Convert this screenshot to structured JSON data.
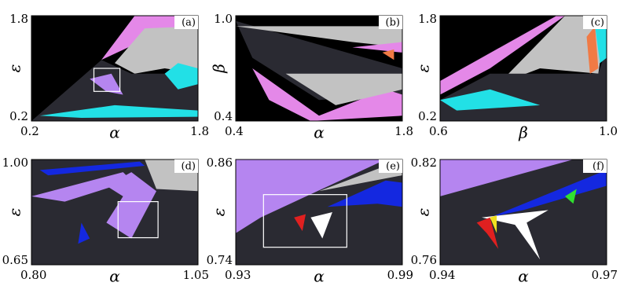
{
  "chart_data": [
    {
      "type": "heatmap",
      "label": "(a)",
      "x_label": "α",
      "y_label": "ε",
      "xlim": [
        0.2,
        1.8
      ],
      "ylim": [
        0.2,
        1.8
      ],
      "xticks": [
        0.2,
        1.8
      ],
      "yticks": [
        0.2,
        1.8
      ]
    },
    {
      "type": "heatmap",
      "label": "(b)",
      "x_label": "α",
      "y_label": "β",
      "xlim": [
        0.4,
        1.8
      ],
      "ylim": [
        0.4,
        1.0
      ],
      "xticks": [
        0.4,
        1.8
      ],
      "yticks": [
        0.4,
        {
          "value": 1.0,
          "label": "1.0"
        }
      ]
    },
    {
      "type": "heatmap",
      "label": "(c)",
      "x_label": "β",
      "y_label": "ε",
      "xlim": [
        0.6,
        1.0
      ],
      "ylim": [
        0.2,
        1.8
      ],
      "xticks": [
        0.6,
        {
          "value": 1.0,
          "label": "1.0"
        }
      ],
      "yticks": [
        0.2,
        1.8
      ]
    },
    {
      "type": "heatmap",
      "label": "(d)",
      "x_label": "α",
      "y_label": "ε",
      "xlim": [
        0.8,
        1.05
      ],
      "ylim": [
        0.65,
        1.0
      ],
      "xticks": [
        {
          "value": 0.8,
          "label": "0.80"
        },
        1.05
      ],
      "yticks": [
        0.65,
        {
          "value": 1.0,
          "label": "1.00"
        }
      ]
    },
    {
      "type": "heatmap",
      "label": "(e)",
      "x_label": "α",
      "y_label": "ε",
      "xlim": [
        0.93,
        0.99
      ],
      "ylim": [
        0.74,
        0.86
      ],
      "xticks": [
        0.93,
        0.99
      ],
      "yticks": [
        0.74,
        0.86
      ]
    },
    {
      "type": "heatmap",
      "label": "(f)",
      "x_label": "α",
      "y_label": "ε",
      "xlim": [
        0.94,
        0.97
      ],
      "ylim": [
        0.76,
        0.82
      ],
      "xticks": [
        0.94,
        0.97
      ],
      "yticks": [
        0.76,
        0.82
      ]
    }
  ]
}
